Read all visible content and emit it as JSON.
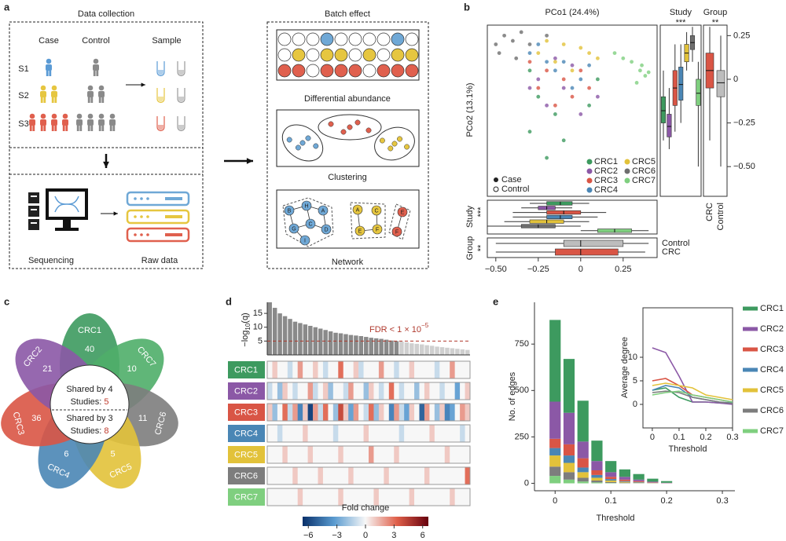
{
  "panel_labels": [
    "a",
    "b",
    "c",
    "d",
    "e"
  ],
  "panel_a": {
    "left_title": "Data collection",
    "right_title": "Batch effect",
    "case": "Case",
    "control": "Control",
    "sample": "Sample",
    "samples": [
      "S1",
      "S2",
      "S3"
    ],
    "sequencing": "Sequencing",
    "raw_data": "Raw data",
    "methods": [
      "Differential abundance",
      "Clustering",
      "Network"
    ],
    "network_nodes": [
      "B",
      "H",
      "A",
      "G",
      "C",
      "D",
      "I",
      "A",
      "C",
      "E",
      "F",
      "E",
      "F"
    ]
  },
  "venn": {
    "sets": [
      {
        "name": "CRC1",
        "count": 40,
        "color": "#3d9a5f"
      },
      {
        "name": "CRC7",
        "count": 10,
        "color": "#4fae69"
      },
      {
        "name": "CRC6",
        "count": 11,
        "color": "#7d7d7d"
      },
      {
        "name": "CRC5",
        "count": 5,
        "color": "#e2c23a"
      },
      {
        "name": "CRC4",
        "count": 6,
        "color": "#4a86b5"
      },
      {
        "name": "CRC3",
        "count": 36,
        "color": "#d95545"
      },
      {
        "name": "CRC2",
        "count": 21,
        "color": "#8b58a6"
      }
    ],
    "center": {
      "top_line": "Shared by 4",
      "top_prefix": "Studies:",
      "top_count": 5,
      "bottom_line": "Shared by 3",
      "bottom_prefix": "Studies:",
      "bottom_count": 8,
      "count_color": "#c0392b"
    }
  },
  "chart_data": [
    {
      "type": "scatter",
      "title": "PCo1 (24.4%)",
      "ylabel": "PCo2 (13.1%)",
      "xlim": [
        -0.55,
        0.45
      ],
      "ylim": [
        -0.67,
        0.31
      ],
      "xticks": [
        {
          "value": -0.5,
          "label": "−0.50"
        },
        {
          "value": -0.25,
          "label": "−0.25"
        },
        0,
        0.25
      ],
      "yticks": [
        0.25,
        0,
        {
          "value": -0.25,
          "label": "−0.25"
        },
        {
          "value": -0.5,
          "label": "−0.50"
        }
      ],
      "group_legend": [
        "Case",
        "Control"
      ],
      "study_label": "Study",
      "group_label": "Group",
      "study_sig": "***",
      "group_sig": "**",
      "series": [
        {
          "name": "CRC1",
          "color": "#3d9a5f",
          "x": [
            -0.3,
            -0.2,
            -0.15,
            -0.25,
            0.05,
            -0.1,
            -0.3,
            0.1
          ],
          "values": [
            -0.3,
            -0.45,
            -0.2,
            -0.1,
            -0.15,
            -0.35,
            0.05,
            0
          ],
          "y_box": [
            -0.35,
            -0.25,
            -0.18,
            -0.1,
            0.05
          ],
          "x_box": [
            -0.3,
            -0.2,
            -0.12,
            -0.05,
            0.05
          ]
        },
        {
          "name": "CRC2",
          "color": "#8b58a6",
          "x": [
            -0.1,
            -0.2,
            -0.05,
            0,
            -0.25,
            -0.15,
            0.1,
            -0.3
          ],
          "values": [
            -0.05,
            -0.15,
            0.08,
            -0.2,
            0,
            0.12,
            -0.1,
            -0.05
          ],
          "y_box": [
            -0.4,
            -0.33,
            -0.27,
            -0.2,
            -0.05
          ],
          "x_box": [
            -0.35,
            -0.25,
            -0.2,
            -0.15,
            -0.05
          ]
        },
        {
          "name": "CRC3",
          "color": "#d95545",
          "x": [
            -0.2,
            -0.1,
            -0.05,
            -0.25,
            0,
            -0.15,
            0.05,
            -0.3
          ],
          "values": [
            0.05,
            0,
            -0.1,
            -0.05,
            0.05,
            -0.15,
            -0.05,
            0.1
          ],
          "y_box": [
            -0.3,
            -0.15,
            -0.05,
            0.05,
            0.2
          ],
          "x_box": [
            -0.4,
            -0.2,
            -0.1,
            0,
            0.15
          ]
        },
        {
          "name": "CRC4",
          "color": "#4a86b5",
          "x": [
            -0.1,
            -0.2,
            0,
            -0.05,
            -0.15,
            0.05,
            -0.25,
            -0.3
          ],
          "values": [
            0.1,
            0.1,
            0,
            -0.05,
            0.05,
            0.08,
            0.2,
            0.15
          ],
          "y_box": [
            -0.25,
            -0.12,
            -0.03,
            0.07,
            0.2
          ],
          "x_box": [
            -0.4,
            -0.2,
            -0.12,
            -0.05,
            0.1
          ]
        },
        {
          "name": "CRC5",
          "color": "#e2c23a",
          "x": [
            -0.2,
            -0.1,
            0,
            -0.15,
            0.05,
            -0.25,
            0.1,
            -0.05
          ],
          "values": [
            0.22,
            0.2,
            0.18,
            0.1,
            0.15,
            0.15,
            0.12,
            0.05
          ],
          "y_box": [
            0.05,
            0.1,
            0.15,
            0.2,
            0.27
          ],
          "x_box": [
            -0.45,
            -0.3,
            -0.2,
            -0.1,
            0.05
          ]
        },
        {
          "name": "CRC6",
          "color": "#6e6e6e",
          "x": [
            -0.5,
            -0.45,
            -0.4,
            -0.35,
            -0.3,
            -0.48,
            -0.2,
            -0.38
          ],
          "values": [
            0.2,
            0.25,
            0.22,
            0.27,
            0.2,
            0.15,
            0.25,
            0.12
          ],
          "y_box": [
            0.1,
            0.17,
            0.21,
            0.25,
            0.3
          ],
          "x_box": [
            -0.55,
            -0.35,
            -0.25,
            -0.15,
            0
          ]
        },
        {
          "name": "CRC7",
          "color": "#7fcf7f",
          "x": [
            0.35,
            0.38,
            0.3,
            0.33,
            0.25,
            0.36,
            0.2,
            0.4
          ],
          "values": [
            0.05,
            0.02,
            0.1,
            -0.02,
            0.12,
            0.08,
            0.15,
            0.04
          ],
          "y_box": [
            -0.5,
            -0.15,
            -0.08,
            0,
            0.1
          ],
          "x_box": [
            0,
            0.1,
            0.2,
            0.3,
            0.4
          ]
        }
      ],
      "groups": [
        {
          "name": "CRC",
          "color": "#d95545",
          "y_box": [
            -0.35,
            -0.05,
            0.05,
            0.15,
            0.3
          ],
          "x_box": [
            -0.5,
            -0.15,
            0,
            0.22,
            0.38
          ]
        },
        {
          "name": "Control",
          "color": "#bdbdbd",
          "y_box": [
            -0.5,
            -0.1,
            -0.02,
            0.05,
            0.25
          ],
          "x_box": [
            -0.5,
            -0.1,
            0,
            0.25,
            0.4
          ]
        }
      ]
    },
    {
      "type": "bar",
      "ylabel": [
        "−log",
        "10",
        "(q)"
      ],
      "values": [
        19,
        17,
        15,
        14,
        13,
        12,
        11.5,
        11,
        10.5,
        10,
        9.5,
        9,
        8.5,
        8,
        7.8,
        7.5,
        7.2,
        7,
        6.8,
        6.5,
        6.2,
        6,
        5.8,
        5.5,
        5.2,
        5,
        4.8,
        4.5,
        4.2,
        4,
        3.8,
        3.5,
        3.3,
        3,
        2.8,
        2.6,
        2.4,
        2.2,
        2,
        1.8
      ],
      "ylim": [
        0,
        19
      ],
      "yticks": [
        5,
        10,
        15
      ],
      "threshold": 5,
      "annotation": [
        "FDR < 1 × 10",
        "−5"
      ],
      "annotation_color": "#b03a2e",
      "color": "#8a8a8a",
      "color_below": "#cfcfcf"
    },
    {
      "type": "heatmap",
      "rows": [
        {
          "name": "CRC1",
          "color": "#3d9a5f",
          "values": [
            0,
            1,
            0,
            0,
            -1,
            0,
            2,
            0,
            0,
            1,
            0,
            -1,
            0,
            0,
            3,
            0,
            0,
            1,
            -1,
            0,
            0,
            0,
            2,
            0,
            0,
            -1,
            0,
            0,
            1,
            0,
            0,
            0,
            0,
            -1,
            0,
            0,
            2,
            0,
            0,
            0
          ]
        },
        {
          "name": "CRC2",
          "color": "#8b58a6",
          "values": [
            -1,
            0,
            -2,
            1,
            0,
            -1,
            0,
            0,
            2,
            -1,
            0,
            1,
            -2,
            0,
            0,
            -1,
            2,
            0,
            0,
            -2,
            1,
            0,
            -1,
            0,
            3,
            0,
            -1,
            0,
            0,
            -2,
            0,
            1,
            0,
            0,
            -1,
            0,
            0,
            -3,
            0,
            1
          ]
        },
        {
          "name": "CRC3",
          "color": "#d95545",
          "values": [
            1,
            -2,
            0,
            3,
            -1,
            2,
            -4,
            1,
            -6,
            2,
            -1,
            3,
            0,
            -2,
            4,
            1,
            -3,
            2,
            0,
            -1,
            3,
            -2,
            1,
            0,
            -4,
            2,
            -1,
            -3,
            1,
            0,
            -5,
            2,
            0,
            -2,
            1,
            -4,
            -3,
            0,
            2,
            1
          ]
        },
        {
          "name": "CRC4",
          "color": "#4a86b5",
          "values": [
            0,
            0,
            -1,
            0,
            0,
            0,
            0,
            1,
            0,
            0,
            0,
            0,
            0,
            -1,
            0,
            0,
            0,
            0,
            0,
            1,
            0,
            0,
            0,
            0,
            0,
            0,
            -1,
            0,
            0,
            0,
            0,
            0,
            1,
            0,
            0,
            0,
            0,
            0,
            -1,
            0
          ]
        },
        {
          "name": "CRC5",
          "color": "#e2c23a",
          "values": [
            0,
            0,
            0,
            1,
            0,
            0,
            0,
            0,
            1,
            0,
            0,
            0,
            0,
            0,
            1,
            0,
            0,
            0,
            0,
            0,
            2,
            0,
            0,
            0,
            0,
            1,
            0,
            0,
            0,
            0,
            0,
            0,
            0,
            0,
            0,
            1,
            0,
            0,
            0,
            0
          ]
        },
        {
          "name": "CRC6",
          "color": "#7d7d7d",
          "values": [
            0,
            0,
            0,
            0,
            0,
            1,
            0,
            0,
            0,
            0,
            1,
            0,
            0,
            0,
            0,
            0,
            1,
            0,
            0,
            0,
            0,
            0,
            0,
            1,
            0,
            0,
            0,
            0,
            0,
            0,
            0,
            1,
            0,
            0,
            0,
            0,
            0,
            0,
            0,
            3
          ]
        },
        {
          "name": "CRC7",
          "color": "#7fcf7f",
          "values": [
            0,
            0,
            0,
            0,
            0,
            0,
            1,
            0,
            0,
            0,
            0,
            0,
            0,
            0,
            1,
            0,
            0,
            0,
            0,
            0,
            0,
            1,
            0,
            0,
            0,
            0,
            0,
            0,
            1,
            0,
            0,
            0,
            0,
            0,
            0,
            0,
            1,
            0,
            0,
            0
          ]
        }
      ],
      "zlim": [
        -6.6,
        6.6
      ],
      "colorbar_label": "Fold change",
      "zticks": [
        {
          "value": -6,
          "label": "−6"
        },
        {
          "value": -3,
          "label": "−3"
        },
        0,
        3,
        6
      ],
      "colors": [
        "#08306b",
        "#5a9bd0",
        "#f7f7f7",
        "#e0604a",
        "#67000d"
      ]
    },
    {
      "type": "stacked_bar",
      "xlabel": "Threshold",
      "ylabel": "No. of edges",
      "x": [
        0,
        0.025,
        0.05,
        0.075,
        0.1,
        0.125,
        0.15,
        0.175,
        0.2
      ],
      "xlim": [
        -0.037,
        0.3225
      ],
      "ylim": [
        -40,
        975
      ],
      "xticks": [
        0,
        0.1,
        0.2,
        0.3
      ],
      "yticks": [
        0,
        250,
        500,
        750
      ],
      "series": [
        {
          "name": "CRC1",
          "color": "#3d9a5f",
          "values": [
            440,
            290,
            220,
            110,
            60,
            40,
            30,
            16,
            9
          ]
        },
        {
          "name": "CRC2",
          "color": "#8b58a6",
          "values": [
            200,
            170,
            90,
            50,
            25,
            15,
            8,
            4,
            2
          ]
        },
        {
          "name": "CRC3",
          "color": "#d95545",
          "values": [
            50,
            60,
            50,
            25,
            12,
            8,
            5,
            2,
            1
          ]
        },
        {
          "name": "CRC4",
          "color": "#4a86b5",
          "values": [
            40,
            40,
            25,
            15,
            8,
            4,
            3,
            1,
            0
          ]
        },
        {
          "name": "CRC5",
          "color": "#e2c23a",
          "values": [
            60,
            50,
            30,
            15,
            8,
            4,
            2,
            1,
            0
          ]
        },
        {
          "name": "CRC6",
          "color": "#7d7d7d",
          "values": [
            50,
            40,
            20,
            10,
            5,
            3,
            1,
            1,
            0
          ]
        },
        {
          "name": "CRC7",
          "color": "#7fcf7f",
          "values": [
            40,
            20,
            10,
            5,
            2,
            1,
            1,
            0,
            0
          ]
        }
      ]
    },
    {
      "type": "line",
      "xlabel": "Threshold",
      "ylabel": "Average degree",
      "x": [
        0,
        0.05,
        0.1,
        0.15,
        0.2,
        0.25,
        0.3
      ],
      "xlim": [
        -0.035,
        0.3
      ],
      "ylim": [
        -5,
        20.5
      ],
      "xticks": [
        0,
        0.1,
        0.2,
        0.3
      ],
      "yticks": [
        0,
        5,
        10
      ],
      "series": [
        {
          "name": "CRC1",
          "color": "#3d9a5f",
          "values": [
            3,
            3.5,
            1.5,
            0.5,
            0.5,
            0.3,
            0.2
          ]
        },
        {
          "name": "CRC2",
          "color": "#8b58a6",
          "values": [
            12,
            11,
            6,
            0.5,
            0.5,
            0.3,
            0
          ]
        },
        {
          "name": "CRC3",
          "color": "#d95545",
          "values": [
            5,
            5.5,
            4,
            2,
            1.5,
            1,
            0.5
          ]
        },
        {
          "name": "CRC4",
          "color": "#4a86b5",
          "values": [
            3,
            4,
            3.5,
            1.5,
            1,
            0.5,
            0.3
          ]
        },
        {
          "name": "CRC5",
          "color": "#e2c23a",
          "values": [
            4,
            4.5,
            4,
            3.5,
            2,
            1.5,
            1
          ]
        },
        {
          "name": "CRC6",
          "color": "#7d7d7d",
          "values": [
            2.5,
            2.8,
            2.5,
            1.5,
            1,
            0.5,
            0.2
          ]
        },
        {
          "name": "CRC7",
          "color": "#7fcf7f",
          "values": [
            2,
            2.5,
            2.8,
            2,
            1.5,
            1,
            0.5
          ]
        }
      ]
    }
  ]
}
